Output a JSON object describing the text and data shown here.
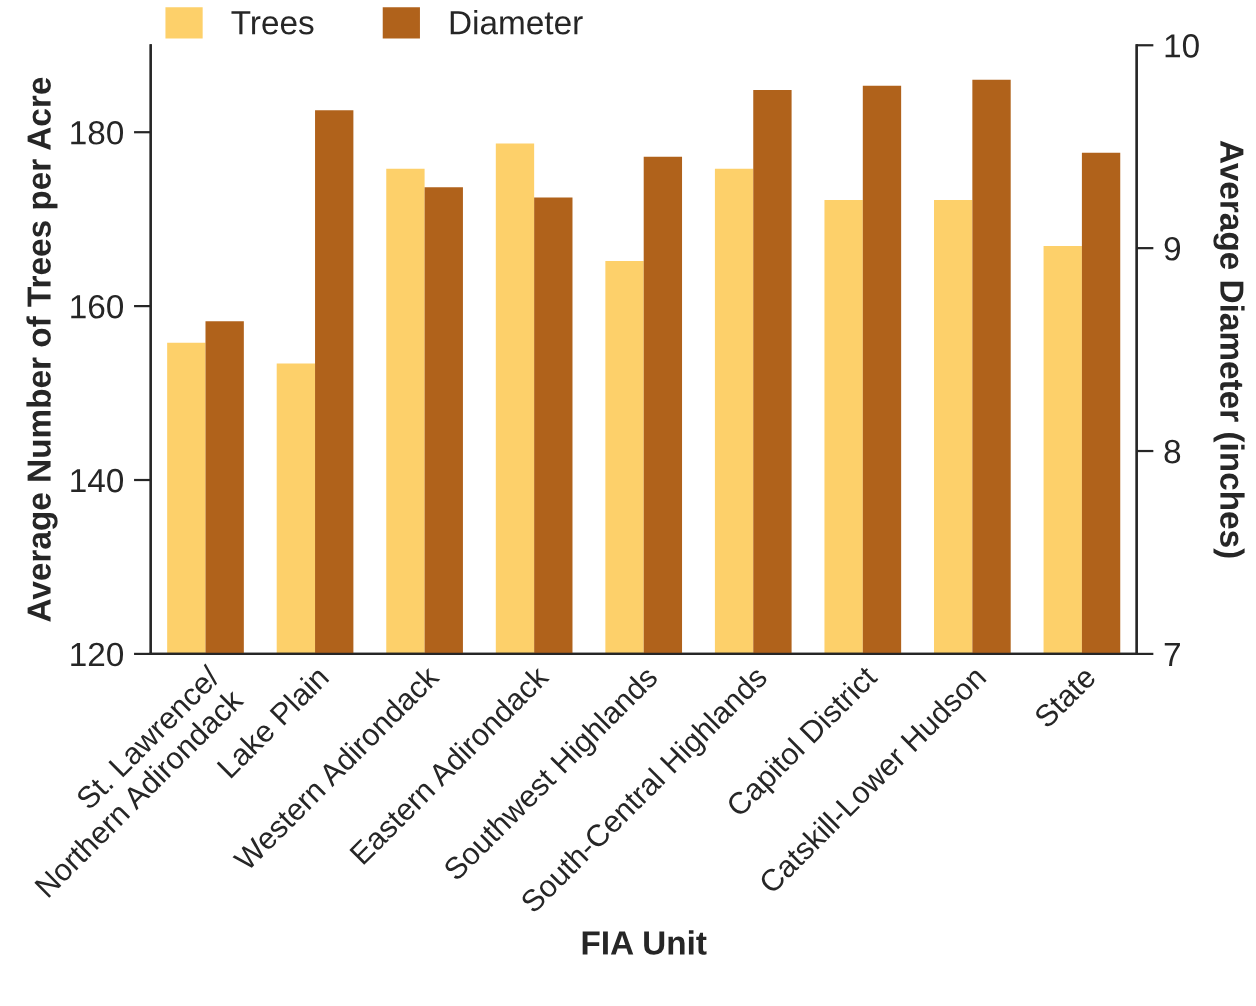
{
  "chart_data": {
    "type": "bar",
    "xlabel": "FIA Unit",
    "ylabel": "Average Number of Trees per Acre",
    "y2label": "Average Diameter (inches)",
    "categories": [
      "St. Lawrence/\nNorthern Adirondack",
      "Lake Plain",
      "Western Adirondack",
      "Eastern Adirondack",
      "Southwest Highlands",
      "South-Central Highlands",
      "Capitol District",
      "Catskill-Lower Hudson",
      "State"
    ],
    "series": [
      {
        "name": "Trees",
        "color": "#fdd06a",
        "values": [
          155.8,
          153.4,
          175.8,
          178.7,
          165.2,
          175.8,
          172.2,
          172.2,
          166.9
        ]
      },
      {
        "name": "Diameter",
        "color": "#b0621b",
        "axis": "y2",
        "values": [
          8.64,
          9.68,
          9.3,
          9.25,
          9.45,
          9.78,
          9.8,
          9.83,
          9.47
        ]
      }
    ],
    "ylim": [
      120,
      190
    ],
    "yticks": [
      120,
      140,
      160,
      180
    ],
    "y2lim": [
      7,
      10
    ],
    "y2ticks": [
      7,
      8,
      9,
      10
    ],
    "legend": "top left",
    "grid": false
  }
}
